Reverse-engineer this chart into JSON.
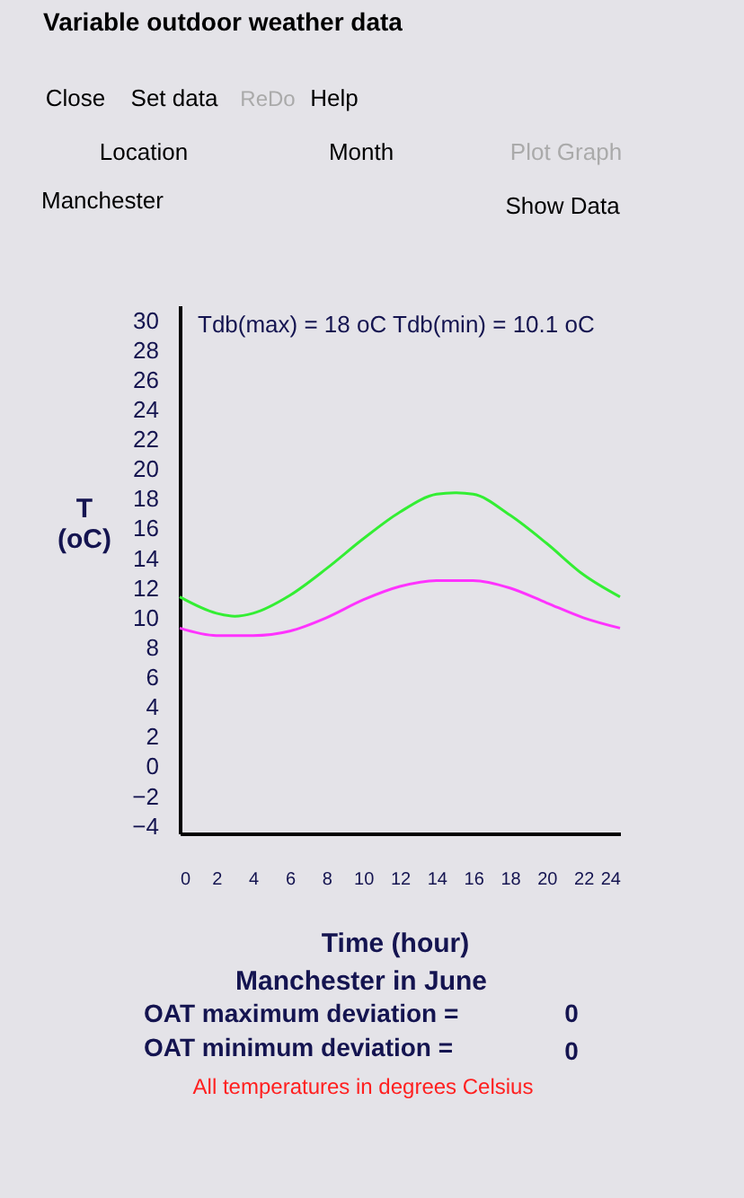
{
  "chart_data": {
    "type": "line",
    "title": "Variable outdoor weather data",
    "xlabel": "Time (hour)",
    "ylabel": "T (oC)",
    "x": [
      0,
      2,
      3,
      4,
      6,
      8,
      10,
      12,
      14,
      15,
      16,
      18,
      20,
      22,
      24
    ],
    "series": [
      {
        "color": "#33ee33",
        "values": [
          11.4,
          10.3,
          10.1,
          10.3,
          11.5,
          13.3,
          15.3,
          17.1,
          18.3,
          18.4,
          18.3,
          16.9,
          15.0,
          12.9,
          11.4
        ]
      },
      {
        "color": "#ff33ff",
        "values": [
          9.3,
          8.8,
          8.8,
          8.8,
          9.1,
          10.0,
          11.2,
          12.1,
          12.5,
          12.5,
          12.5,
          12.0,
          11.0,
          10.0,
          9.3
        ]
      }
    ],
    "xlim": [
      0,
      24
    ],
    "ylim": [
      -4.5,
      31
    ],
    "xticks": [
      0,
      2,
      4,
      6,
      8,
      10,
      12,
      14,
      16,
      18,
      20,
      22,
      24
    ],
    "yticks": [
      -4,
      -2,
      0,
      2,
      4,
      6,
      8,
      10,
      12,
      14,
      16,
      18,
      20,
      22,
      24,
      26,
      28,
      30
    ],
    "grid": false,
    "annotations": [
      "Close",
      "Set data",
      "ReDo",
      "Help",
      "Location",
      "Month",
      "Plot Graph",
      "Manchester",
      "Show Data",
      "Tdb(max) =   18   oC   Tdb(min) = 10.1   oC",
      "Manchester  in  June",
      "OAT maximum deviation =",
      "0",
      "OAT minimum deviation =",
      "0",
      "All temperatures in degrees Celsius"
    ]
  }
}
